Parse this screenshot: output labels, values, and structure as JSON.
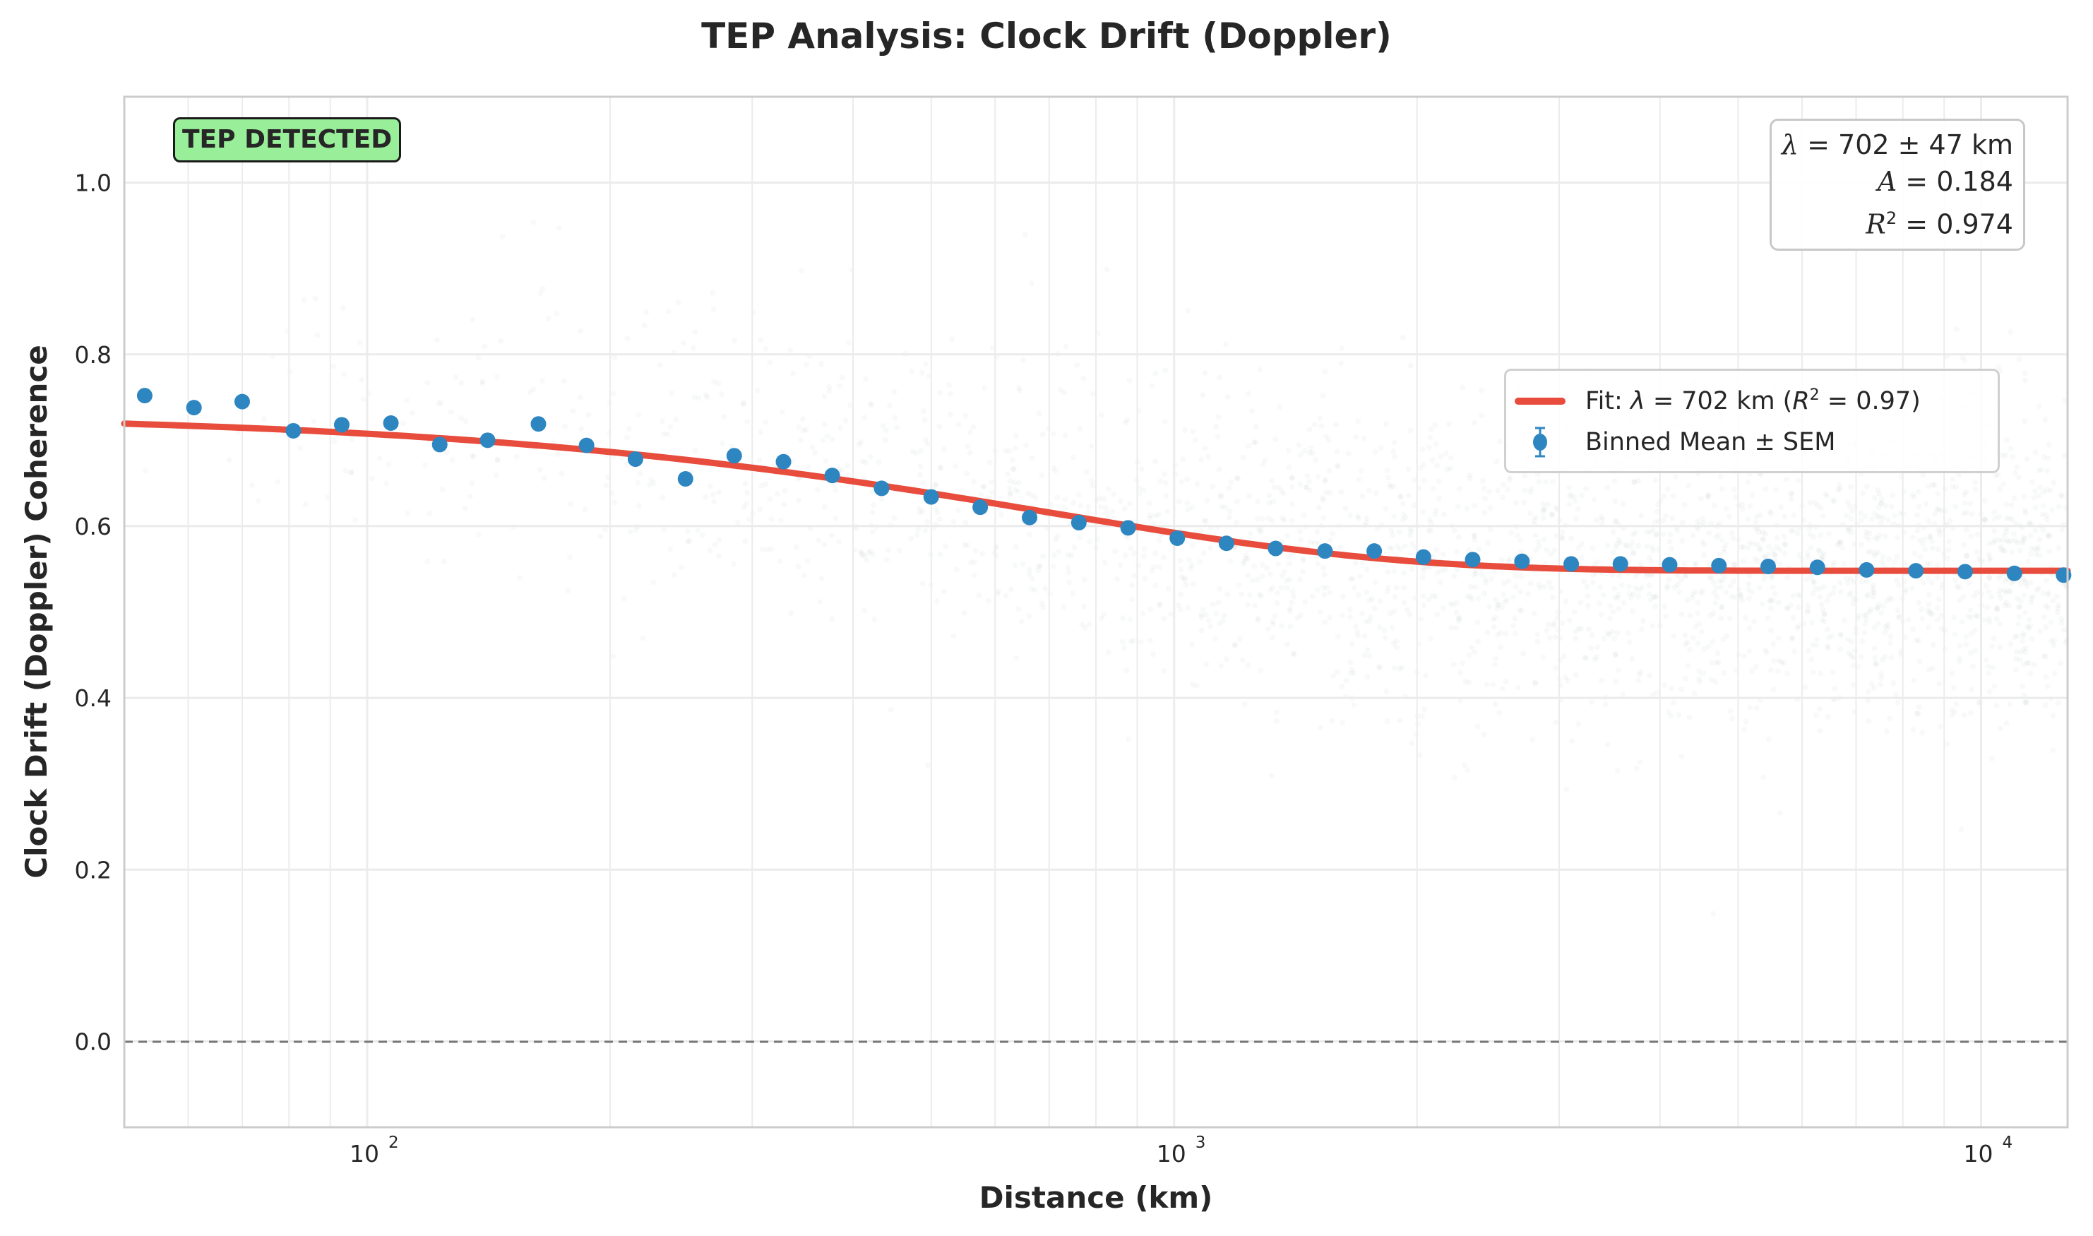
{
  "title": "TEP Analysis: Clock Drift (Doppler)",
  "badge": {
    "label": "TEP DETECTED",
    "color": "#98ee99"
  },
  "stats": {
    "lambda_line": "λ = 702 ± 47 km",
    "lambda_sym": "λ",
    "lambda_val": " = 702 ± 47 km",
    "A_sym": "A",
    "A_val": " = 0.184",
    "R2_sym": "R",
    "R2_sup": "2",
    "R2_val": " = 0.974"
  },
  "legend": {
    "fit_prefix": "Fit: ",
    "fit_lambda": "λ",
    "fit_mid": " = 702 km (",
    "fit_R": "R",
    "fit_sup": "2",
    "fit_end": " = 0.97)",
    "binned": "Binned Mean ± SEM"
  },
  "colors": {
    "fit": "#e74c3c",
    "points": "#2e86c1",
    "scatter": "#b0b8c0",
    "zero_line": "#777777",
    "grid": "#ebebeb",
    "spine": "#cccccc"
  },
  "chart_data": {
    "type": "scatter",
    "title": "TEP Analysis: Clock Drift (Doppler)",
    "xlabel": "Distance (km)",
    "ylabel": "Clock Drift (Doppler) Coherence",
    "xscale": "log",
    "xlim": [
      50,
      12800
    ],
    "ylim": [
      -0.1,
      1.1
    ],
    "x_ticks": [
      "10^2",
      "10^3",
      "10^4"
    ],
    "y_ticks": [
      "0.0",
      "0.2",
      "0.4",
      "0.6",
      "0.8",
      "1.0"
    ],
    "grid": true,
    "legend_position": "center right",
    "reference_line": {
      "y": 0.0,
      "style": "dashed",
      "color": "#777777"
    },
    "series": [
      {
        "name": "Binned Mean ± SEM",
        "type": "errorbar",
        "x": [
          53,
          61,
          70,
          81,
          93,
          107,
          123,
          141,
          163,
          187,
          215,
          248,
          285,
          328,
          377,
          434,
          500,
          575,
          662,
          762,
          877,
          1009,
          1161,
          1336,
          1538,
          1770,
          2037,
          2344,
          2698,
          3105,
          3573,
          4112,
          4733,
          5447,
          6269,
          7214,
          8303,
          9555,
          10997,
          12655
        ],
        "y": [
          0.752,
          0.738,
          0.745,
          0.711,
          0.718,
          0.72,
          0.695,
          0.7,
          0.719,
          0.694,
          0.678,
          0.655,
          0.682,
          0.675,
          0.659,
          0.644,
          0.634,
          0.622,
          0.61,
          0.604,
          0.598,
          0.586,
          0.58,
          0.574,
          0.571,
          0.571,
          0.564,
          0.561,
          0.559,
          0.556,
          0.556,
          0.555,
          0.554,
          0.553,
          0.552,
          0.549,
          0.548,
          0.547,
          0.545,
          0.543
        ]
      },
      {
        "name": "Fit: λ = 702 km (R² = 0.97)",
        "type": "line",
        "model": "y = A*exp(-x/lambda) + C",
        "params": {
          "A": 0.184,
          "lambda": 702,
          "C": 0.548
        },
        "x": [
          50,
          100,
          200,
          300,
          500,
          700,
          1000,
          1500,
          2000,
          3000,
          5000,
          10000,
          12800
        ],
        "y": [
          0.72,
          0.708,
          0.694,
          0.68,
          0.64,
          0.604,
          0.586,
          0.568,
          0.558,
          0.55,
          0.548,
          0.548,
          0.548
        ]
      }
    ],
    "annotations": [
      "TEP DETECTED",
      "λ = 702 ± 47 km",
      "A = 0.184",
      "R² = 0.974"
    ]
  },
  "axes": {
    "xlabel": "Distance (km)",
    "ylabel": "Clock Drift (Doppler) Coherence",
    "x_tick_base": "10",
    "x_tick_exps": [
      "2",
      "3",
      "4"
    ],
    "y_ticks": [
      "0.0",
      "0.2",
      "0.4",
      "0.6",
      "0.8",
      "1.0"
    ]
  }
}
